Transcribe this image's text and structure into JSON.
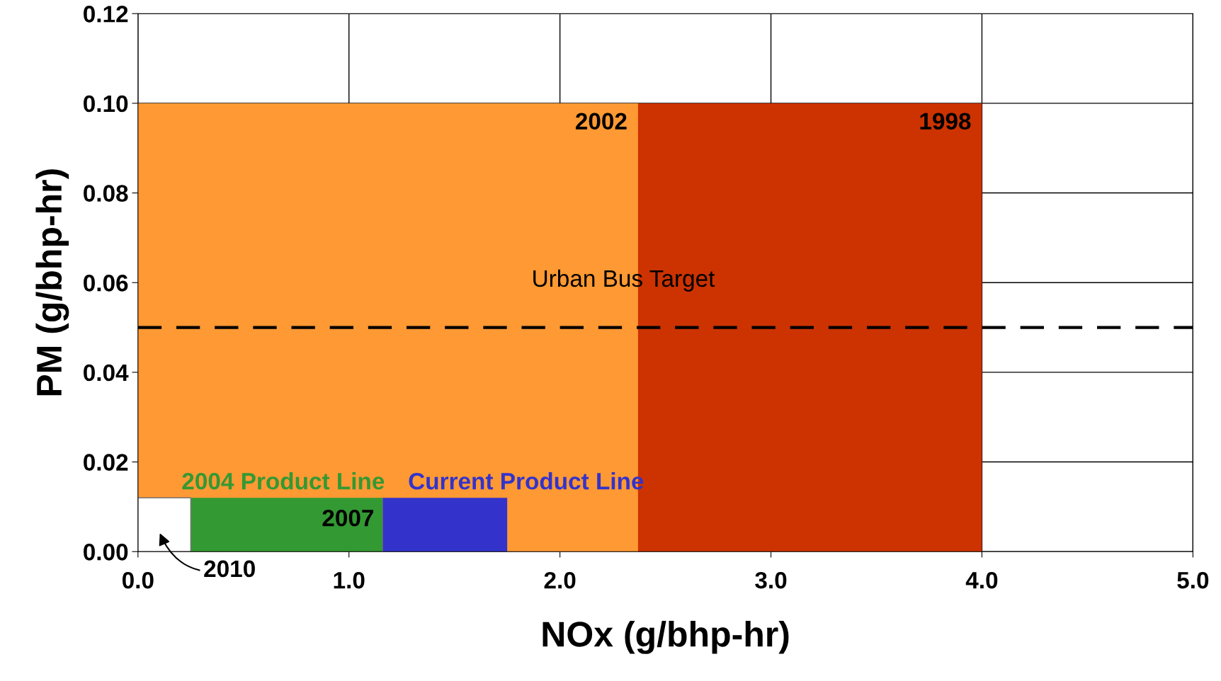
{
  "chart_data": {
    "type": "area",
    "xlabel": "NOx (g/bhp-hr)",
    "ylabel": "PM (g/bhp-hr)",
    "series": [
      {
        "name": "1998",
        "color": "#cc3300",
        "x": [
          0,
          4.0
        ],
        "values": [
          0.1,
          0.1
        ]
      },
      {
        "name": "2002",
        "color": "#ff9933",
        "x": [
          0,
          2.37
        ],
        "values": [
          0.1,
          0.1
        ]
      },
      {
        "name": "2004 Product Line",
        "color": "#339933",
        "x": [
          0.25,
          1.16
        ],
        "values": [
          0.012,
          0.012
        ]
      },
      {
        "name": "Current Product Line",
        "color": "#3333cc",
        "x": [
          1.16,
          1.75
        ],
        "values": [
          0.012,
          0.012
        ]
      },
      {
        "color": "#ffffff",
        "x": [
          0,
          0.25
        ],
        "values": [
          0.012,
          0.012
        ]
      }
    ],
    "annotations": [
      {
        "text": "2007",
        "x": 1.16,
        "y": 0.012
      },
      {
        "text": "2010",
        "x": 0.25,
        "y": 0.012
      }
    ],
    "ref_lines": [
      {
        "axis": "y",
        "value": 0.05,
        "label": "Urban Bus Target",
        "color": "#000000",
        "line_style": "dashed"
      }
    ],
    "xlim": [
      0,
      5
    ],
    "ylim": [
      0,
      0.12
    ],
    "xticks": [
      {
        "value": 0,
        "label": "0.0"
      },
      {
        "value": 1,
        "label": "1.0"
      },
      {
        "value": 2,
        "label": "2.0"
      },
      {
        "value": 3,
        "label": "3.0"
      },
      {
        "value": 4,
        "label": "4.0"
      },
      {
        "value": 5,
        "label": "5.0"
      }
    ],
    "yticks": [
      {
        "value": 0,
        "label": "0.00"
      },
      {
        "value": 0.02,
        "label": "0.02"
      },
      {
        "value": 0.04,
        "label": "0.04"
      },
      {
        "value": 0.06,
        "label": "0.06"
      },
      {
        "value": 0.08,
        "label": "0.08"
      },
      {
        "value": 0.1,
        "label": "0.10"
      },
      {
        "value": 0.12,
        "label": "0.12"
      }
    ],
    "grid": true,
    "legend": false
  }
}
